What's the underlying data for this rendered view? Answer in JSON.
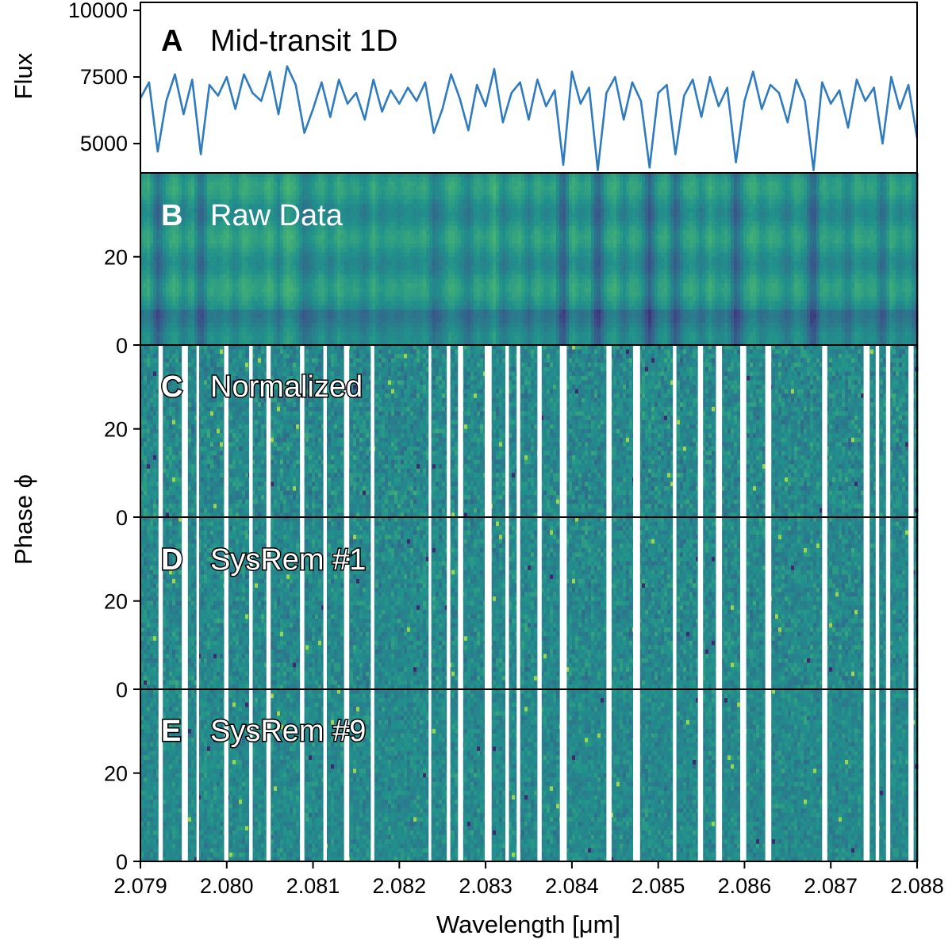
{
  "chart_data": [
    {
      "type": "line",
      "panel": "A",
      "panel_label": "A",
      "panel_title": "Mid-transit 1D",
      "ylabel": "Flux",
      "xlim": [
        2.079,
        2.088
      ],
      "ylim": [
        3900,
        10300
      ],
      "yticks": [
        "5000",
        "7500",
        "10000"
      ],
      "ytick_values": [
        5000,
        7500,
        10000
      ],
      "line_color": "#2f7bbf",
      "series": [
        {
          "x": [
            2.079,
            2.0791,
            2.0792,
            2.0793,
            2.0794,
            2.0795,
            2.0796,
            2.0797,
            2.0798,
            2.0799,
            2.08,
            2.0801,
            2.0802,
            2.0803,
            2.0804,
            2.0805,
            2.0806,
            2.0807,
            2.0808,
            2.0809,
            2.081,
            2.0811,
            2.0812,
            2.0813,
            2.0814,
            2.0815,
            2.0816,
            2.0817,
            2.0818,
            2.0819,
            2.082,
            2.0821,
            2.0822,
            2.0823,
            2.0824,
            2.0825,
            2.0826,
            2.0827,
            2.0828,
            2.0829,
            2.083,
            2.0831,
            2.0832,
            2.0833,
            2.0834,
            2.0835,
            2.0836,
            2.0837,
            2.0838,
            2.0839,
            2.084,
            2.0841,
            2.0842,
            2.0843,
            2.0844,
            2.0845,
            2.0846,
            2.0847,
            2.0848,
            2.0849,
            2.085,
            2.0851,
            2.0852,
            2.0853,
            2.0854,
            2.0855,
            2.0856,
            2.0857,
            2.0858,
            2.0859,
            2.086,
            2.0861,
            2.0862,
            2.0863,
            2.0864,
            2.0865,
            2.0866,
            2.0867,
            2.0868,
            2.0869,
            2.087,
            2.0871,
            2.0872,
            2.0873,
            2.0874,
            2.0875,
            2.0876,
            2.0877,
            2.0878,
            2.0879,
            2.088
          ],
          "values": [
            6700,
            7300,
            4700,
            6600,
            7600,
            6100,
            7400,
            4600,
            7200,
            6800,
            7500,
            6300,
            7600,
            6900,
            6600,
            7700,
            6100,
            7900,
            7200,
            5400,
            6300,
            7300,
            6000,
            7400,
            6500,
            6900,
            5900,
            7400,
            6200,
            7000,
            6500,
            7100,
            6600,
            7300,
            5400,
            6300,
            7600,
            6700,
            5500,
            7200,
            6400,
            7800,
            5800,
            6900,
            7300,
            5900,
            7400,
            6400,
            7000,
            4200,
            7700,
            6500,
            7100,
            4000,
            6900,
            7500,
            5900,
            7300,
            6600,
            4100,
            6900,
            7200,
            4600,
            6800,
            7400,
            6000,
            7500,
            6400,
            7100,
            4300,
            6600,
            7700,
            6300,
            7200,
            6900,
            5800,
            7400,
            6600,
            4000,
            7300,
            6500,
            7000,
            5600,
            7400,
            6600,
            7100,
            5000,
            7500,
            6300,
            7200,
            5200
          ]
        }
      ]
    },
    {
      "type": "heatmap",
      "panel": "B",
      "panel_label": "B",
      "panel_title": "Raw Data",
      "yticks": [
        "0",
        "20"
      ],
      "ylim": [
        0,
        39
      ],
      "colormap": [
        "#440154",
        "#3b528b",
        "#21918c",
        "#5ec962",
        "#fde725"
      ],
      "masked": false
    },
    {
      "type": "heatmap",
      "panel": "C",
      "panel_label": "C",
      "panel_title": "Normalized",
      "yticks": [
        "0",
        "20"
      ],
      "ylim": [
        0,
        39
      ],
      "masked": true
    },
    {
      "type": "heatmap",
      "panel": "D",
      "panel_label": "D",
      "panel_title": "SysRem #1",
      "yticks": [
        "0",
        "20"
      ],
      "ylim": [
        0,
        39
      ],
      "masked": true
    },
    {
      "type": "heatmap",
      "panel": "E",
      "panel_label": "E",
      "panel_title": "SysRem #9",
      "yticks": [
        "0",
        "20"
      ],
      "ylim": [
        0,
        39
      ],
      "masked": true
    }
  ],
  "shared": {
    "ylabel_phase": "Phase ϕ",
    "xlabel": "Wavelength [μm]",
    "xticks": [
      "2.079",
      "2.080",
      "2.081",
      "2.082",
      "2.083",
      "2.084",
      "2.085",
      "2.086",
      "2.087",
      "2.088"
    ],
    "xtick_values": [
      2.079,
      2.08,
      2.081,
      2.082,
      2.083,
      2.084,
      2.085,
      2.086,
      2.087,
      2.088
    ],
    "masked_wavelength_bands": [
      [
        2.07921,
        2.07926
      ],
      [
        2.07948,
        2.07955
      ],
      [
        2.07965,
        2.07968
      ],
      [
        2.07997,
        2.08002
      ],
      [
        2.08026,
        2.0803
      ],
      [
        2.08046,
        2.08051
      ],
      [
        2.08085,
        2.0809
      ],
      [
        2.08112,
        2.08116
      ],
      [
        2.08136,
        2.08142
      ],
      [
        2.08167,
        2.08171
      ],
      [
        2.08234,
        2.08237
      ],
      [
        2.08255,
        2.08259
      ],
      [
        2.08268,
        2.08274
      ],
      [
        2.08299,
        2.08307
      ],
      [
        2.08323,
        2.08327
      ],
      [
        2.08336,
        2.0834
      ],
      [
        2.0836,
        2.08365
      ],
      [
        2.08386,
        2.08394
      ],
      [
        2.0844,
        2.08446
      ],
      [
        2.08471,
        2.08479
      ],
      [
        2.08517,
        2.08521
      ],
      [
        2.08546,
        2.08552
      ],
      [
        2.08567,
        2.08574
      ],
      [
        2.08595,
        2.08602
      ],
      [
        2.08624,
        2.08631
      ],
      [
        2.0869,
        2.08696
      ],
      [
        2.08738,
        2.08745
      ],
      [
        2.08752,
        2.08756
      ],
      [
        2.08764,
        2.08769
      ],
      [
        2.0879,
        2.08796
      ]
    ]
  }
}
